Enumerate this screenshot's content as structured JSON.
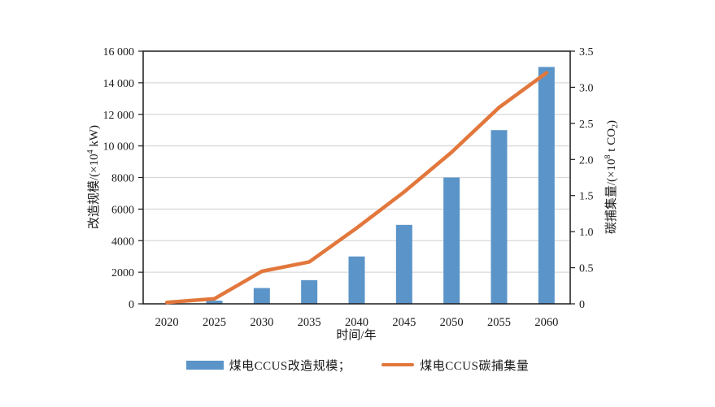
{
  "chart_data": {
    "type": "bar+line combo",
    "categories": [
      "2020",
      "2025",
      "2030",
      "2035",
      "2040",
      "2045",
      "2050",
      "2055",
      "2060"
    ],
    "series": [
      {
        "name": "煤电CCUS改造规模",
        "type": "bar",
        "axis": "left",
        "values": [
          0,
          200,
          1000,
          1500,
          3000,
          5000,
          8000,
          11000,
          15000
        ]
      },
      {
        "name": "煤电CCUS碳捕集量",
        "type": "line",
        "axis": "right",
        "values": [
          0.02,
          0.07,
          0.45,
          0.58,
          1.05,
          1.55,
          2.1,
          2.72,
          3.2
        ]
      }
    ],
    "xlabel": "时间/年",
    "ylabel_left": "改造规模/(×10⁴ kW)",
    "ylabel_right": "碳捕集量/(×10⁸ t CO₂)",
    "ylim_left": [
      0,
      16000
    ],
    "ylim_right": [
      0,
      3.5
    ],
    "grid": "horizontal gridlines every 2000 (left axis), full box frame",
    "legend_position": "bottom center"
  },
  "axes": {
    "left": {
      "title_prefix": "改造规模/(×10",
      "title_sup": "4",
      "title_suffix": " kW)",
      "ticks": [
        {
          "v": 0,
          "label": "0"
        },
        {
          "v": 2000,
          "label": "2000"
        },
        {
          "v": 4000,
          "label": "4000"
        },
        {
          "v": 6000,
          "label": "6000"
        },
        {
          "v": 8000,
          "label": "8000"
        },
        {
          "v": 10000,
          "label": "10 000"
        },
        {
          "v": 12000,
          "label": "12 000"
        },
        {
          "v": 14000,
          "label": "14 000"
        },
        {
          "v": 16000,
          "label": "16 000"
        }
      ]
    },
    "right": {
      "title_prefix": "碳捕集量/(×10",
      "title_sup": "8",
      "title_mid": " t CO",
      "title_sub": "2",
      "title_suffix": ")",
      "ticks": [
        {
          "v": 0,
          "label": "0"
        },
        {
          "v": 0.5,
          "label": "0.5"
        },
        {
          "v": 1,
          "label": "1.0"
        },
        {
          "v": 1.5,
          "label": "1.5"
        },
        {
          "v": 2,
          "label": "2.0"
        },
        {
          "v": 2.5,
          "label": "2.5"
        },
        {
          "v": 3,
          "label": "3.0"
        },
        {
          "v": 3.5,
          "label": "3.5"
        }
      ]
    },
    "x": {
      "title": "时间/年",
      "labels": [
        "2020",
        "2025",
        "2030",
        "2035",
        "2040",
        "2045",
        "2050",
        "2055",
        "2060"
      ]
    }
  },
  "legend": {
    "items": [
      {
        "label": "煤电CCUS改造规模；",
        "swatch": "bar"
      },
      {
        "label": "煤电CCUS碳捕集量",
        "swatch": "line"
      }
    ]
  },
  "colors": {
    "bar": "#5B94C8",
    "line": "#E2773C",
    "grid": "#D8D8D8",
    "frame": "#1A1A1A",
    "text": "#1A1A1A"
  }
}
